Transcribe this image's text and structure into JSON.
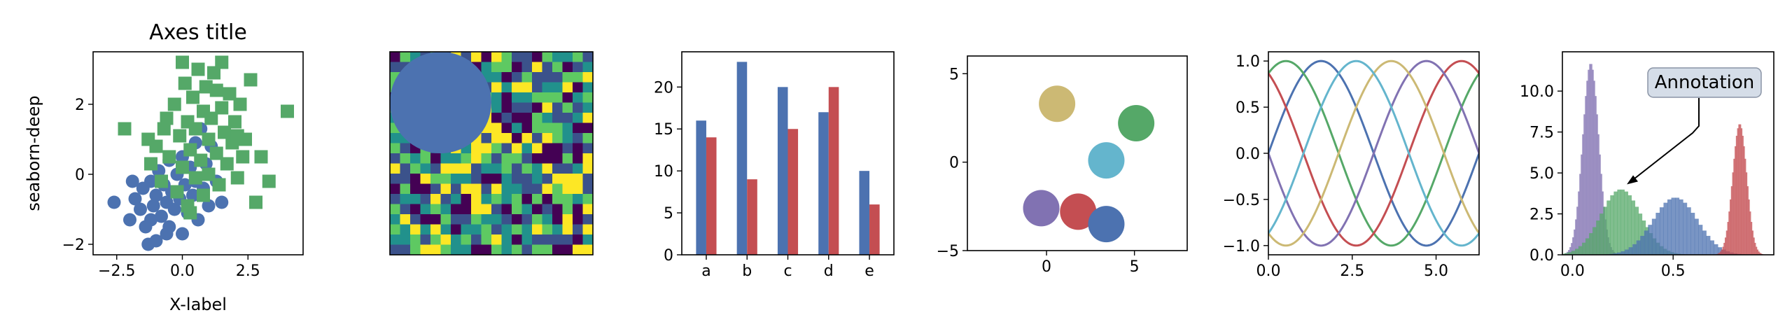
{
  "figure": {
    "palette": {
      "blue": "#4c72b0",
      "green": "#55a868",
      "red": "#c44e52",
      "purple": "#8172b2",
      "khaki": "#ccb974",
      "cyan": "#64b5cd"
    }
  },
  "chart_data": [
    {
      "type": "scatter",
      "title": "Axes title",
      "xlabel": "X-label",
      "ylabel": "seaborn-deep",
      "xlim": [
        -3.4,
        4.6
      ],
      "ylim": [
        -2.3,
        3.5
      ],
      "xticks": [
        -2.5,
        0.0,
        2.5
      ],
      "xtick_labels": [
        "−2.5",
        "0.0",
        "2.5"
      ],
      "yticks": [
        -2,
        0,
        2
      ],
      "ytick_labels": [
        "−2",
        "0",
        "2"
      ],
      "series": [
        {
          "marker": "circle",
          "color": "#4c72b0",
          "points": [
            [
              -2.6,
              -0.8
            ],
            [
              -2.0,
              -1.3
            ],
            [
              -1.8,
              -0.7
            ],
            [
              -1.6,
              -1.0
            ],
            [
              -1.5,
              -0.4
            ],
            [
              -1.4,
              -1.5
            ],
            [
              -1.3,
              -2.0
            ],
            [
              -1.2,
              -0.2
            ],
            [
              -1.1,
              -0.9
            ],
            [
              -1.0,
              -1.9
            ],
            [
              -1.0,
              -0.6
            ],
            [
              -0.9,
              0.1
            ],
            [
              -0.8,
              -1.2
            ],
            [
              -0.7,
              -0.3
            ],
            [
              -0.6,
              -0.8
            ],
            [
              -0.5,
              0.4
            ],
            [
              -0.5,
              -1.5
            ],
            [
              -0.4,
              -0.5
            ],
            [
              -0.3,
              -1.0
            ],
            [
              -0.2,
              0.0
            ],
            [
              -0.1,
              -0.7
            ],
            [
              0.0,
              -1.7
            ],
            [
              0.0,
              0.5
            ],
            [
              0.1,
              -0.3
            ],
            [
              0.2,
              -1.1
            ],
            [
              0.3,
              0.2
            ],
            [
              0.4,
              -0.6
            ],
            [
              0.5,
              0.9
            ],
            [
              0.6,
              -1.3
            ],
            [
              0.7,
              1.3
            ],
            [
              0.8,
              -0.4
            ],
            [
              0.9,
              0.3
            ],
            [
              1.0,
              -0.9
            ],
            [
              1.1,
              0.8
            ],
            [
              1.3,
              -0.2
            ],
            [
              1.5,
              -0.8
            ],
            [
              -1.9,
              -0.2
            ],
            [
              -1.2,
              -1.3
            ],
            [
              -0.6,
              -1.7
            ],
            [
              0.5,
              -0.2
            ]
          ]
        },
        {
          "marker": "square",
          "color": "#55a868",
          "points": [
            [
              -2.2,
              1.3
            ],
            [
              -1.2,
              0.3
            ],
            [
              -1.0,
              0.8
            ],
            [
              -0.8,
              -0.2
            ],
            [
              -0.6,
              1.6
            ],
            [
              -0.5,
              0.5
            ],
            [
              -0.3,
              2.0
            ],
            [
              -0.2,
              -0.5
            ],
            [
              -0.1,
              1.1
            ],
            [
              0.0,
              3.2
            ],
            [
              0.0,
              0.2
            ],
            [
              0.1,
              2.6
            ],
            [
              0.2,
              1.5
            ],
            [
              0.2,
              -0.9
            ],
            [
              0.3,
              0.7
            ],
            [
              0.4,
              2.2
            ],
            [
              0.5,
              -0.1
            ],
            [
              0.5,
              1.3
            ],
            [
              0.6,
              3.0
            ],
            [
              0.7,
              0.4
            ],
            [
              0.8,
              1.8
            ],
            [
              0.8,
              -0.6
            ],
            [
              0.9,
              2.5
            ],
            [
              1.0,
              1.0
            ],
            [
              1.0,
              0.0
            ],
            [
              1.1,
              1.6
            ],
            [
              1.2,
              2.9
            ],
            [
              1.3,
              0.6
            ],
            [
              1.4,
              -0.3
            ],
            [
              1.5,
              1.9
            ],
            [
              1.5,
              3.2
            ],
            [
              1.6,
              1.2
            ],
            [
              1.7,
              0.3
            ],
            [
              1.8,
              2.3
            ],
            [
              1.9,
              0.9
            ],
            [
              2.0,
              1.5
            ],
            [
              2.1,
              -0.1
            ],
            [
              2.2,
              2.0
            ],
            [
              2.3,
              0.5
            ],
            [
              2.4,
              1.0
            ],
            [
              2.6,
              2.7
            ],
            [
              2.8,
              -0.8
            ],
            [
              3.0,
              0.5
            ],
            [
              3.3,
              -0.2
            ],
            [
              4.0,
              1.8
            ],
            [
              -1.3,
              1.0
            ],
            [
              -0.7,
              1.3
            ],
            [
              0.3,
              -1.1
            ],
            [
              1.3,
              2.4
            ],
            [
              2.1,
              1.1
            ]
          ]
        }
      ]
    },
    {
      "type": "heatmap",
      "rows": 20,
      "cols": 20,
      "colormap": [
        "#440154",
        "#3b528b",
        "#21918c",
        "#5ec962",
        "#fde725"
      ],
      "circle": {
        "center": [
          0.25,
          0.25
        ],
        "radius": 0.25,
        "color": "#4c72b0"
      }
    },
    {
      "type": "bar",
      "categories": [
        "a",
        "b",
        "c",
        "d",
        "e"
      ],
      "series": [
        {
          "color": "#4c72b0",
          "values": [
            16,
            23,
            20,
            17,
            10
          ]
        },
        {
          "color": "#c44e52",
          "values": [
            14,
            9,
            15,
            20,
            6
          ]
        }
      ],
      "ylim": [
        0,
        24.2
      ],
      "yticks": [
        0,
        5,
        10,
        15,
        20
      ],
      "ytick_labels": [
        "0",
        "5",
        "10",
        "15",
        "20"
      ]
    },
    {
      "type": "scatter",
      "xlim": [
        -4.5,
        8.0
      ],
      "ylim": [
        -5,
        6
      ],
      "xticks": [
        0,
        5
      ],
      "xtick_labels": [
        "0",
        "5"
      ],
      "yticks": [
        -5,
        0,
        5
      ],
      "ytick_labels": [
        "−5",
        "0",
        "5"
      ],
      "points": [
        {
          "x": 0.6,
          "y": 3.3,
          "color": "#ccb974"
        },
        {
          "x": 5.1,
          "y": 2.2,
          "color": "#55a868"
        },
        {
          "x": 3.4,
          "y": 0.1,
          "color": "#64b5cd"
        },
        {
          "x": -0.3,
          "y": -2.6,
          "color": "#8172b2"
        },
        {
          "x": 1.8,
          "y": -2.8,
          "color": "#c44e52"
        },
        {
          "x": 3.4,
          "y": -3.5,
          "color": "#4c72b0"
        }
      ]
    },
    {
      "type": "line",
      "xlim": [
        0.0,
        6.283
      ],
      "ylim": [
        -1.1,
        1.1
      ],
      "xticks": [
        0.0,
        2.5,
        5.0
      ],
      "xtick_labels": [
        "0.0",
        "2.5",
        "5.0"
      ],
      "yticks": [
        -1.0,
        -0.5,
        0.0,
        0.5,
        1.0
      ],
      "ytick_labels": [
        "−1.0",
        "−0.5",
        "0.0",
        "0.5",
        "1.0"
      ],
      "series": [
        {
          "color": "#4c72b0",
          "phase": 0.0
        },
        {
          "color": "#55a868",
          "phase": 1.0472
        },
        {
          "color": "#c44e52",
          "phase": 2.0944
        },
        {
          "color": "#8172b2",
          "phase": 3.1416
        },
        {
          "color": "#ccb974",
          "phase": 4.1888
        },
        {
          "color": "#64b5cd",
          "phase": 5.236
        }
      ]
    },
    {
      "type": "histogram",
      "xlim": [
        -0.05,
        1.0
      ],
      "ylim": [
        0,
        12.4
      ],
      "xticks": [
        0.0,
        0.5
      ],
      "xtick_labels": [
        "0.0",
        "0.5"
      ],
      "yticks": [
        0.0,
        2.5,
        5.0,
        7.5,
        10.0
      ],
      "ytick_labels": [
        "0.0",
        "2.5",
        "5.0",
        "7.5",
        "10.0"
      ],
      "distributions": [
        {
          "color": "#8172b2",
          "mean": 0.09,
          "sd": 0.04,
          "peak": 11.7
        },
        {
          "color": "#55a868",
          "mean": 0.24,
          "sd": 0.1,
          "peak": 4.0
        },
        {
          "color": "#4c72b0",
          "mean": 0.51,
          "sd": 0.11,
          "peak": 3.5
        },
        {
          "color": "#c44e52",
          "mean": 0.83,
          "sd": 0.035,
          "peak": 8.0
        }
      ],
      "annotation": {
        "text": "Annotation",
        "target": [
          0.27,
          4.3
        ]
      }
    }
  ]
}
